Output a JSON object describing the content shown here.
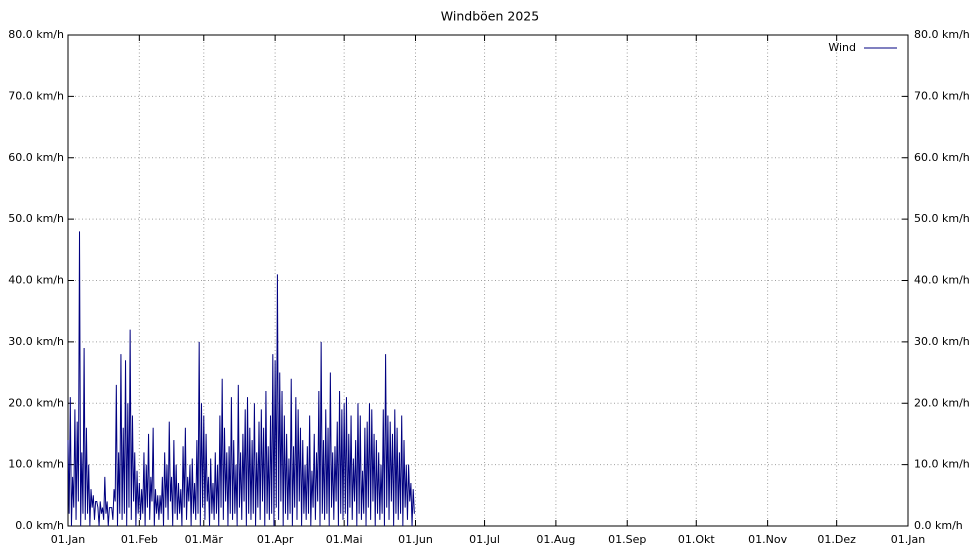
{
  "chart_data": {
    "type": "line",
    "title": "Windböen 2025",
    "x": [
      0,
      0.5,
      1,
      1.5,
      2,
      2.5,
      3,
      3.5,
      4,
      4.5,
      5,
      5.5,
      6,
      6.5,
      7,
      7.5,
      8,
      8.5,
      9,
      9.5,
      10,
      10.5,
      11,
      11.5,
      12,
      12.5,
      13,
      13.5,
      14,
      14.5,
      15,
      15.5,
      16,
      16.5,
      17,
      17.5,
      18,
      18.5,
      19,
      19.5,
      20,
      20.5,
      21,
      21.5,
      22,
      22.5,
      23,
      23.5,
      24,
      24.5,
      25,
      25.5,
      26,
      26.5,
      27,
      27.5,
      28,
      28.5,
      29,
      29.5,
      30,
      30.5,
      31,
      31.5,
      32,
      32.5,
      33,
      33.5,
      34,
      34.5,
      35,
      35.5,
      36,
      36.5,
      37,
      37.5,
      38,
      38.5,
      39,
      39.5,
      40,
      40.5,
      41,
      41.5,
      42,
      42.5,
      43,
      43.5,
      44,
      44.5,
      45,
      45.5,
      46,
      46.5,
      47,
      47.5,
      48,
      48.5,
      49,
      49.5,
      50,
      50.5,
      51,
      51.5,
      52,
      52.5,
      53,
      53.5,
      54,
      54.5,
      55,
      55.5,
      56,
      56.5,
      57,
      57.5,
      58,
      58.5,
      59,
      59.5,
      60,
      60.5,
      61,
      61.5,
      62,
      62.5,
      63,
      63.5,
      64,
      64.5,
      65,
      65.5,
      66,
      66.5,
      67,
      67.5,
      68,
      68.5,
      69,
      69.5,
      70,
      70.5,
      71,
      71.5,
      72,
      72.5,
      73,
      73.5,
      74,
      74.5,
      75,
      75.5,
      76,
      76.5,
      77,
      77.5,
      78,
      78.5,
      79,
      79.5,
      80,
      80.5,
      81,
      81.5,
      82,
      82.5,
      83,
      83.5,
      84,
      84.5,
      85,
      85.5,
      86,
      86.5,
      87,
      87.5,
      88,
      88.5,
      89,
      89.5,
      90,
      90.5,
      91,
      91.5,
      92,
      92.5,
      93,
      93.5,
      94,
      94.5,
      95,
      95.5,
      96,
      96.5,
      97,
      97.5,
      98,
      98.5,
      99,
      99.5,
      100,
      100.5,
      101,
      101.5,
      102,
      102.5,
      103,
      103.5,
      104,
      104.5,
      105,
      105.5,
      106,
      106.5,
      107,
      107.5,
      108,
      108.5,
      109,
      109.5,
      110,
      110.5,
      111,
      111.5,
      112,
      112.5,
      113,
      113.5,
      114,
      114.5,
      115,
      115.5,
      116,
      116.5,
      117,
      117.5,
      118,
      118.5,
      119,
      119.5,
      120,
      120.5,
      121,
      121.5,
      122,
      122.5,
      123,
      123.5,
      124,
      124.5,
      125,
      125.5,
      126,
      126.5,
      127,
      127.5,
      128,
      128.5,
      129,
      129.5,
      130,
      130.5,
      131,
      131.5,
      132,
      132.5,
      133,
      133.5,
      134,
      134.5,
      135,
      135.5,
      136,
      136.5,
      137,
      137.5,
      138,
      138.5,
      139,
      139.5,
      140,
      140.5,
      141,
      141.5,
      142,
      142.5,
      143,
      143.5,
      144,
      144.5,
      145,
      145.5,
      146,
      146.5,
      147,
      147.5,
      148,
      148.5,
      149,
      149.5,
      150,
      150.5
    ],
    "series": [
      {
        "name": "Wind",
        "color": "#000080",
        "values": [
          14,
          2,
          21,
          0,
          8,
          3,
          19,
          1,
          17,
          4,
          48,
          0,
          12,
          2,
          29,
          1,
          16,
          2,
          10,
          0,
          6,
          3,
          5,
          1,
          4,
          4,
          3,
          0,
          4,
          2,
          3,
          1,
          8,
          2,
          4,
          0,
          3,
          3,
          3,
          1,
          6,
          4,
          23,
          0,
          12,
          2,
          28,
          1,
          16,
          2,
          27,
          0,
          20,
          3,
          32,
          1,
          18,
          4,
          12,
          0,
          9,
          2,
          7,
          1,
          6,
          2,
          12,
          0,
          10,
          3,
          15,
          1,
          8,
          4,
          16,
          0,
          6,
          2,
          5,
          1,
          5,
          2,
          8,
          0,
          12,
          3,
          10,
          1,
          17,
          4,
          8,
          0,
          14,
          2,
          10,
          1,
          7,
          2,
          6,
          0,
          13,
          3,
          16,
          1,
          8,
          4,
          10,
          0,
          11,
          2,
          7,
          1,
          14,
          2,
          30,
          0,
          20,
          3,
          18,
          1,
          15,
          4,
          8,
          0,
          11,
          2,
          7,
          1,
          12,
          2,
          10,
          0,
          18,
          3,
          24,
          1,
          16,
          4,
          12,
          0,
          13,
          2,
          21,
          1,
          14,
          2,
          10,
          0,
          23,
          3,
          12,
          1,
          15,
          4,
          19,
          0,
          21,
          2,
          16,
          1,
          14,
          2,
          20,
          0,
          12,
          3,
          17,
          1,
          19,
          4,
          16,
          0,
          22,
          2,
          13,
          1,
          18,
          2,
          28,
          0,
          27,
          3,
          41,
          1,
          25,
          4,
          22,
          0,
          18,
          2,
          15,
          1,
          11,
          2,
          24,
          0,
          13,
          3,
          21,
          1,
          19,
          4,
          16,
          0,
          14,
          2,
          10,
          1,
          13,
          2,
          18,
          0,
          9,
          3,
          15,
          1,
          12,
          4,
          22,
          0,
          30,
          2,
          14,
          1,
          19,
          2,
          16,
          0,
          25,
          3,
          12,
          1,
          13,
          4,
          17,
          0,
          22,
          2,
          19,
          1,
          20,
          2,
          21,
          0,
          15,
          3,
          18,
          1,
          11,
          4,
          14,
          0,
          20,
          2,
          18,
          1,
          9,
          2,
          16,
          0,
          17,
          3,
          20,
          1,
          19,
          4,
          15,
          0,
          14,
          2,
          12,
          1,
          10,
          2,
          19,
          0,
          28,
          3,
          18,
          1,
          17,
          4,
          15,
          0,
          19,
          2,
          16,
          1,
          12,
          2,
          18,
          0,
          14,
          3,
          10,
          1,
          10,
          4,
          7,
          0,
          6,
          2
        ]
      }
    ],
    "xlim": [
      0,
      365
    ],
    "xticks": [
      {
        "value": 0,
        "label": "01.Jan"
      },
      {
        "value": 31,
        "label": "01.Feb"
      },
      {
        "value": 59,
        "label": "01.Mär"
      },
      {
        "value": 90,
        "label": "01.Apr"
      },
      {
        "value": 120,
        "label": "01.Mai"
      },
      {
        "value": 151,
        "label": "01.Jun"
      },
      {
        "value": 181,
        "label": "01.Jul"
      },
      {
        "value": 212,
        "label": "01.Aug"
      },
      {
        "value": 243,
        "label": "01.Sep"
      },
      {
        "value": 273,
        "label": "01.Okt"
      },
      {
        "value": 304,
        "label": "01.Nov"
      },
      {
        "value": 334,
        "label": "01.Dez"
      },
      {
        "value": 365,
        "label": "01.Jan"
      }
    ],
    "ylim": [
      0,
      80
    ],
    "yticks": [
      {
        "value": 0,
        "label": "0.0 km/h"
      },
      {
        "value": 10,
        "label": "10.0 km/h"
      },
      {
        "value": 20,
        "label": "20.0 km/h"
      },
      {
        "value": 30,
        "label": "30.0 km/h"
      },
      {
        "value": 40,
        "label": "40.0 km/h"
      },
      {
        "value": 50,
        "label": "50.0 km/h"
      },
      {
        "value": 60,
        "label": "60.0 km/h"
      },
      {
        "value": 70,
        "label": "70.0 km/h"
      },
      {
        "value": 80,
        "label": "80.0 km/h"
      }
    ],
    "y2lim": [
      0,
      80
    ],
    "y2ticks": [
      {
        "value": 0,
        "label": "0.0 km/h"
      },
      {
        "value": 10,
        "label": "10.0 km/h"
      },
      {
        "value": 20,
        "label": "20.0 km/h"
      },
      {
        "value": 30,
        "label": "30.0 km/h"
      },
      {
        "value": 40,
        "label": "40.0 km/h"
      },
      {
        "value": 50,
        "label": "50.0 km/h"
      },
      {
        "value": 60,
        "label": "60.0 km/h"
      },
      {
        "value": 70,
        "label": "70.0 km/h"
      },
      {
        "value": 80,
        "label": "80.0 km/h"
      }
    ],
    "grid": true,
    "legend": "top-right"
  }
}
